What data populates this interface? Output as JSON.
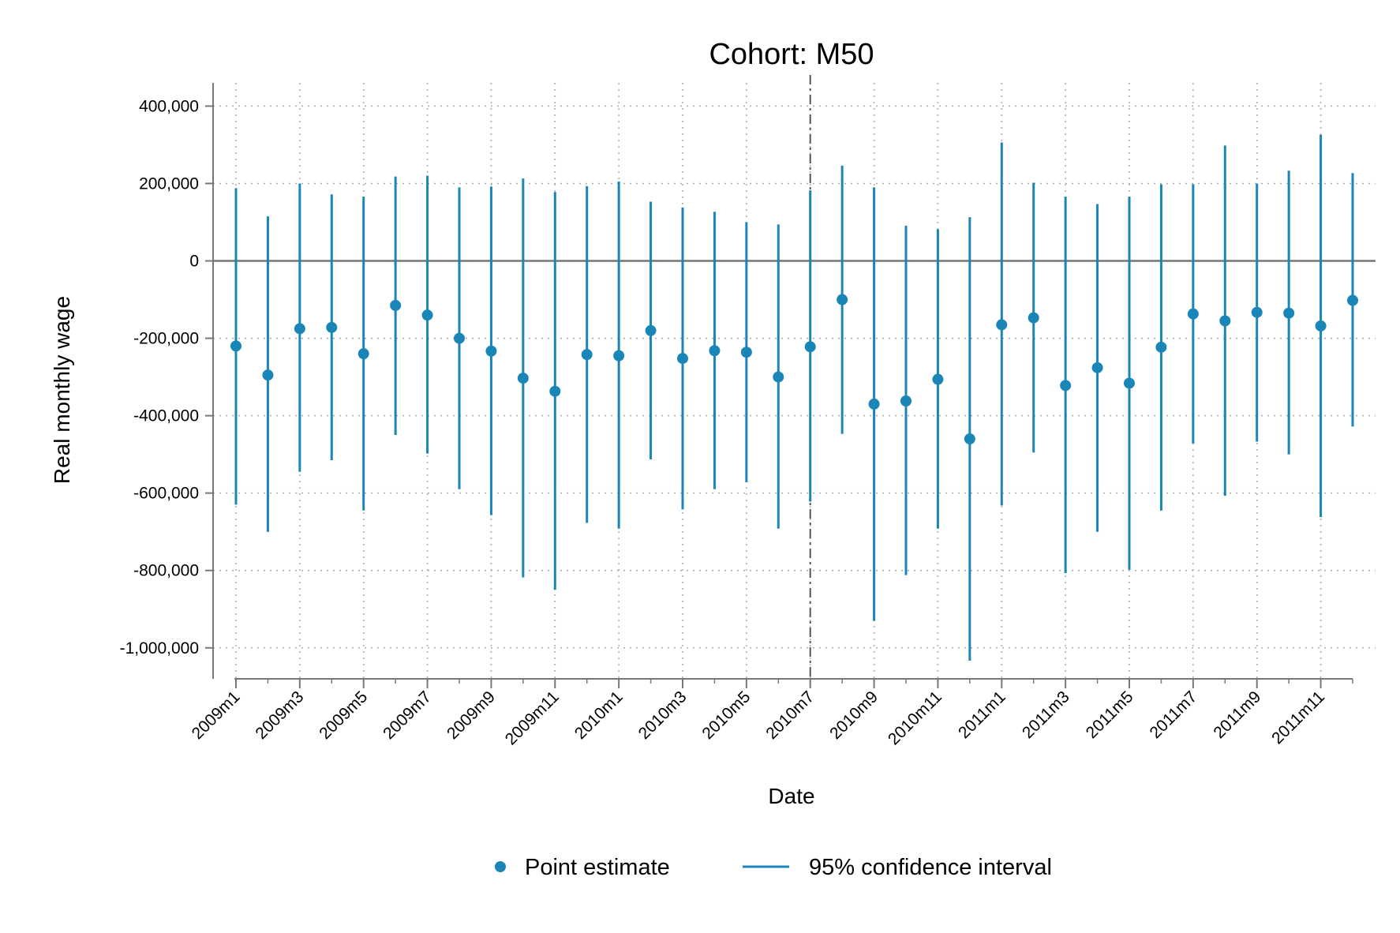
{
  "chart_data": {
    "type": "scatter",
    "title": "Cohort: M50",
    "xlabel": "Date",
    "ylabel": "Real monthly wage",
    "ylim": [
      -1080000,
      460000
    ],
    "y_ticks": [
      400000,
      200000,
      0,
      -200000,
      -400000,
      -600000,
      -800000,
      -1000000
    ],
    "y_tick_labels": [
      "400,000",
      "200,000",
      "0",
      "-200,000",
      "-400,000",
      "-600,000",
      "-800,000",
      "-1,000,000"
    ],
    "x": [
      "2009m1",
      "2009m2",
      "2009m3",
      "2009m4",
      "2009m5",
      "2009m6",
      "2009m7",
      "2009m8",
      "2009m9",
      "2009m10",
      "2009m11",
      "2009m12",
      "2010m1",
      "2010m2",
      "2010m3",
      "2010m4",
      "2010m5",
      "2010m6",
      "2010m7",
      "2010m8",
      "2010m9",
      "2010m10",
      "2010m11",
      "2010m12",
      "2011m1",
      "2011m2",
      "2011m3",
      "2011m4",
      "2011m5",
      "2011m6",
      "2011m7",
      "2011m8",
      "2011m9",
      "2011m10",
      "2011m11",
      "2011m12"
    ],
    "x_tick_labels": [
      "2009m1",
      "2009m3",
      "2009m5",
      "2009m7",
      "2009m9",
      "2009m11",
      "2010m1",
      "2010m3",
      "2010m5",
      "2010m7",
      "2010m9",
      "2010m11",
      "2011m1",
      "2011m3",
      "2011m5",
      "2011m7",
      "2011m9",
      "2011m11"
    ],
    "reference_line_y": 0,
    "reference_line_x": "2010m7",
    "grid": true,
    "legend_position": "bottom",
    "series": [
      {
        "name": "Point estimate",
        "values": [
          -220000,
          -295000,
          -175000,
          -172000,
          -240000,
          -115000,
          -140000,
          -200000,
          -233000,
          -303000,
          -337000,
          -242000,
          -245000,
          -180000,
          -252000,
          -232000,
          -236000,
          -300000,
          -222000,
          -100000,
          -370000,
          -362000,
          -306000,
          -460000,
          -165000,
          -147000,
          -322000,
          -276000,
          -316000,
          -223000,
          -137000,
          -155000,
          -133000,
          -135000,
          -168000,
          -102000
        ]
      },
      {
        "name": "95% confidence interval",
        "lower": [
          -630000,
          -700000,
          -545000,
          -515000,
          -645000,
          -450000,
          -498000,
          -590000,
          -657000,
          -818000,
          -850000,
          -677000,
          -692000,
          -513000,
          -642000,
          -590000,
          -572000,
          -692000,
          -622000,
          -447000,
          -930000,
          -812000,
          -692000,
          -1033000,
          -632000,
          -495000,
          -807000,
          -700000,
          -798000,
          -645000,
          -472000,
          -607000,
          -467000,
          -500000,
          -662000,
          -428000
        ],
        "upper": [
          188000,
          115000,
          200000,
          172000,
          166000,
          218000,
          220000,
          190000,
          192000,
          213000,
          178000,
          193000,
          205000,
          153000,
          138000,
          127000,
          100000,
          94000,
          182000,
          246000,
          190000,
          91000,
          82000,
          113000,
          306000,
          202000,
          166000,
          147000,
          166000,
          198000,
          198000,
          298000,
          200000,
          233000,
          326000,
          227000
        ]
      }
    ],
    "colors": {
      "marker": "#1a86b7",
      "ci": "#1a86b7",
      "axis": "#777777",
      "grid": "#aaaaaa",
      "ref": "#777777"
    }
  }
}
